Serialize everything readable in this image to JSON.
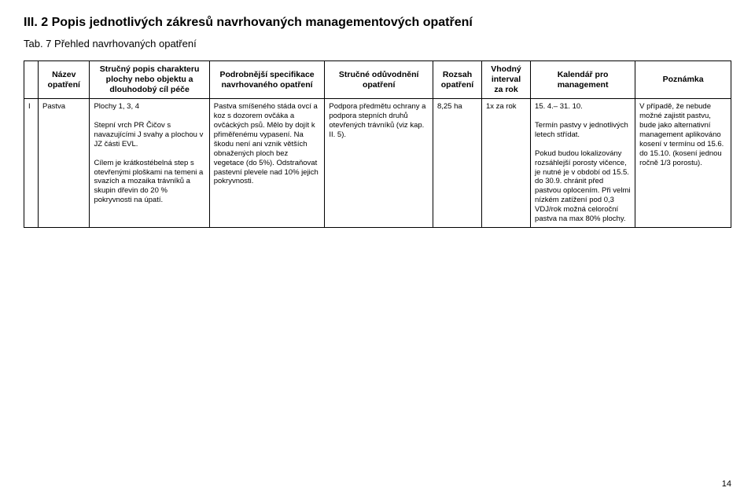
{
  "heading": "III. 2  Popis jednotlivých zákresů navrhovaných managementových opatření",
  "subtitle": "Tab. 7 Přehled navrhovaných opatření",
  "columns": [
    "",
    "Název opatření",
    "Stručný popis charakteru plochy nebo objektu a dlouhodobý cíl péče",
    "Podrobnější specifikace navrhovaného opatření",
    "Stručné odůvodnění opatření",
    "Rozsah opatření",
    "Vhodný interval za rok",
    "Kalendář pro management",
    "Poznámka"
  ],
  "row": {
    "idx": "I",
    "name": "Pastva",
    "desc": "Plochy 1, 3, 4\n\nStepní vrch PR Čičov s navazujícími J svahy a plochou v JZ části EVL.\n\nCílem je krátkostébelná step s otevřenými ploškami na temeni a svazích a mozaika trávníků a skupin dřevin do 20 % pokryvnosti na úpatí.",
    "spec": "Pastva smíšeného stáda ovcí a koz s dozorem ovčáka a ovčáckých psů. Mělo by dojít k přiměřenému vypasení. Na škodu není ani vznik větších obnažených ploch bez vegetace (do 5%). Odstraňovat pastevní plevele nad 10% jejich pokryvnosti.",
    "reason": "Podpora předmětu ochrany a podpora stepních druhů otevřených trávníků (viz kap. II. 5).",
    "extent": "8,25 ha",
    "interval": "1x za rok",
    "calendar": "15. 4.– 31. 10.\n\nTermín pastvy v jednotlivých letech střídat.\n\nPokud budou lokalizovány rozsáhlejší porosty vičence, je nutné je v období od 15.5. do 30.9. chránit před pastvou oplocením. Při velmi nízkém zatížení pod 0,3 VDJ/rok možná celoroční pastva na max 80% plochy.",
    "note": "V případě, že nebude možné zajistit pastvu, bude jako alternativní management aplikováno kosení v termínu od 15.6. do 15.10. (kosení jednou ročně 1/3 porostu)."
  },
  "page_number": "14"
}
